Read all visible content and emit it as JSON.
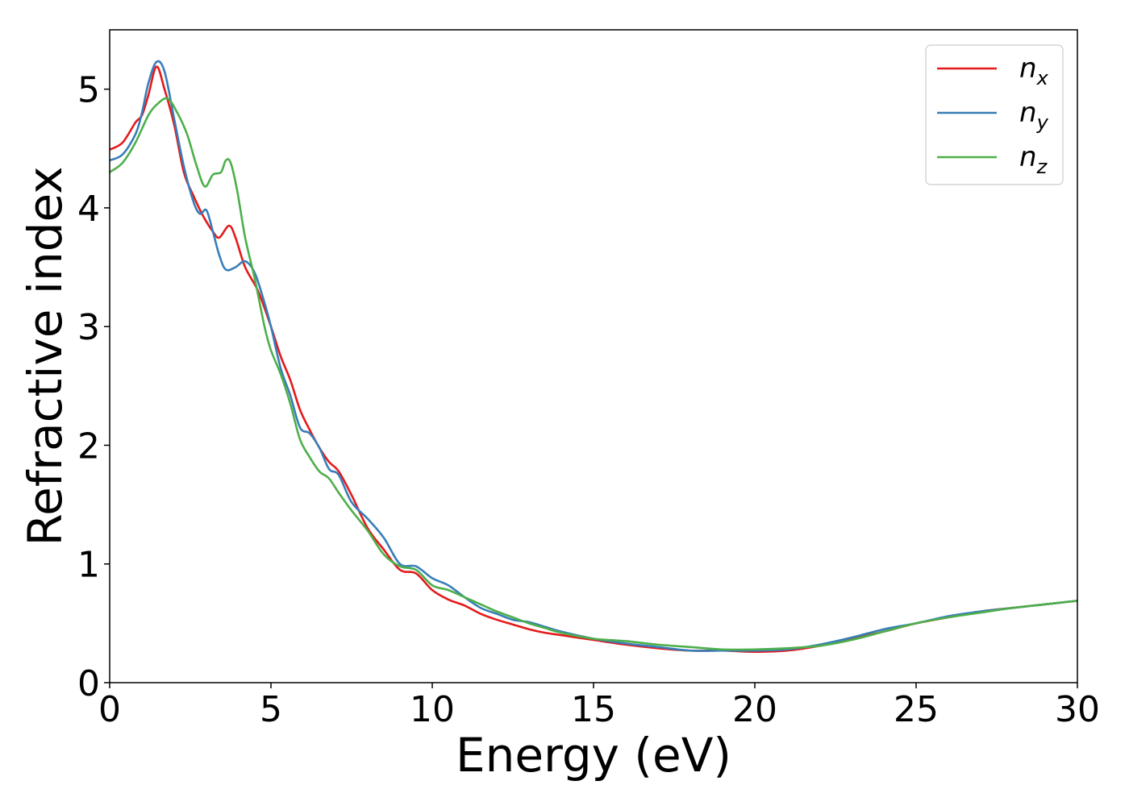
{
  "chart_data": {
    "type": "line",
    "title": "",
    "xlabel": "Energy (eV)",
    "ylabel": "Refractive index",
    "xlim": [
      0,
      30
    ],
    "ylim": [
      0,
      5.5
    ],
    "xticks": [
      0,
      5,
      10,
      15,
      20,
      25,
      30
    ],
    "yticks": [
      0,
      1,
      2,
      3,
      4,
      5
    ],
    "grid": false,
    "legend_position": "top-right",
    "series": [
      {
        "name": "n",
        "subscript": "x",
        "color": "#e41a1c",
        "x": [
          0,
          0.4,
          0.8,
          1.0,
          1.2,
          1.45,
          1.7,
          2.0,
          2.3,
          2.6,
          2.9,
          3.2,
          3.4,
          3.7,
          3.9,
          4.2,
          4.6,
          5.0,
          5.3,
          5.6,
          5.9,
          6.2,
          6.5,
          6.8,
          7.1,
          7.5,
          8.0,
          8.5,
          9.0,
          9.5,
          10.0,
          10.5,
          11.0,
          11.5,
          12.0,
          12.5,
          13.0,
          13.5,
          14.0,
          15.0,
          16.0,
          17.0,
          18.0,
          19.0,
          20.0,
          21.0,
          22.0,
          23.0,
          24.0,
          25.0,
          26.0,
          27.0,
          28.0,
          29.0,
          30.0
        ],
        "y": [
          4.49,
          4.55,
          4.72,
          4.78,
          4.95,
          5.19,
          5.0,
          4.7,
          4.3,
          4.1,
          3.93,
          3.8,
          3.75,
          3.85,
          3.75,
          3.5,
          3.3,
          3.0,
          2.75,
          2.55,
          2.3,
          2.13,
          1.98,
          1.86,
          1.78,
          1.58,
          1.3,
          1.12,
          0.95,
          0.92,
          0.78,
          0.7,
          0.65,
          0.58,
          0.53,
          0.49,
          0.45,
          0.42,
          0.4,
          0.36,
          0.32,
          0.29,
          0.27,
          0.27,
          0.26,
          0.27,
          0.31,
          0.37,
          0.43,
          0.5,
          0.55,
          0.6,
          0.63,
          0.66,
          0.69
        ]
      },
      {
        "name": "n",
        "subscript": "y",
        "color": "#377eb8",
        "x": [
          0,
          0.4,
          0.8,
          1.0,
          1.2,
          1.45,
          1.7,
          2.0,
          2.3,
          2.6,
          2.8,
          3.0,
          3.2,
          3.4,
          3.6,
          3.9,
          4.2,
          4.5,
          4.8,
          5.0,
          5.3,
          5.6,
          5.9,
          6.2,
          6.5,
          6.8,
          7.1,
          7.5,
          8.0,
          8.5,
          9.0,
          9.5,
          10.0,
          10.5,
          11.0,
          11.5,
          12.0,
          12.5,
          13.0,
          13.5,
          14.0,
          15.0,
          16.0,
          17.0,
          18.0,
          19.0,
          20.0,
          21.0,
          22.0,
          23.0,
          24.0,
          25.0,
          26.0,
          27.0,
          28.0,
          29.0,
          30.0
        ],
        "y": [
          4.4,
          4.45,
          4.62,
          4.8,
          5.05,
          5.23,
          5.15,
          4.75,
          4.35,
          4.05,
          3.95,
          3.98,
          3.8,
          3.6,
          3.48,
          3.5,
          3.55,
          3.45,
          3.2,
          3.0,
          2.65,
          2.42,
          2.15,
          2.1,
          1.98,
          1.8,
          1.75,
          1.52,
          1.38,
          1.22,
          1.0,
          0.98,
          0.88,
          0.82,
          0.72,
          0.63,
          0.58,
          0.53,
          0.51,
          0.47,
          0.43,
          0.37,
          0.33,
          0.3,
          0.27,
          0.27,
          0.27,
          0.28,
          0.32,
          0.38,
          0.45,
          0.5,
          0.56,
          0.6,
          0.63,
          0.66,
          0.69
        ]
      },
      {
        "name": "n",
        "subscript": "z",
        "color": "#4daf4a",
        "x": [
          0,
          0.4,
          0.8,
          1.2,
          1.5,
          1.8,
          2.1,
          2.4,
          2.7,
          2.95,
          3.2,
          3.45,
          3.6,
          3.75,
          3.95,
          4.2,
          4.5,
          4.8,
          5.0,
          5.3,
          5.6,
          5.9,
          6.2,
          6.5,
          6.8,
          7.1,
          7.5,
          8.0,
          8.5,
          9.0,
          9.5,
          10.0,
          10.5,
          11.0,
          11.5,
          12.0,
          12.5,
          13.0,
          13.5,
          14.0,
          15.0,
          16.0,
          17.0,
          18.0,
          19.0,
          20.0,
          21.0,
          22.0,
          23.0,
          24.0,
          25.0,
          26.0,
          27.0,
          28.0,
          29.0,
          30.0
        ],
        "y": [
          4.3,
          4.38,
          4.55,
          4.78,
          4.88,
          4.92,
          4.8,
          4.62,
          4.35,
          4.18,
          4.28,
          4.3,
          4.4,
          4.38,
          4.15,
          3.75,
          3.4,
          3.0,
          2.8,
          2.6,
          2.35,
          2.05,
          1.9,
          1.78,
          1.72,
          1.6,
          1.45,
          1.28,
          1.08,
          0.98,
          0.95,
          0.82,
          0.78,
          0.72,
          0.66,
          0.6,
          0.55,
          0.5,
          0.46,
          0.42,
          0.37,
          0.35,
          0.32,
          0.3,
          0.28,
          0.28,
          0.29,
          0.31,
          0.36,
          0.43,
          0.5,
          0.55,
          0.59,
          0.63,
          0.66,
          0.69
        ]
      }
    ]
  }
}
